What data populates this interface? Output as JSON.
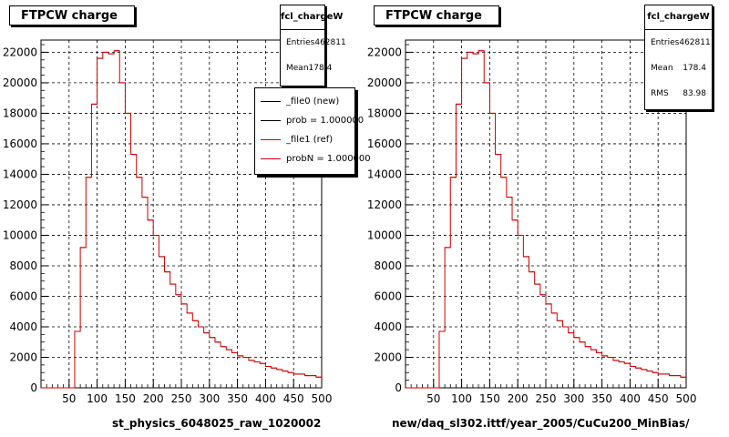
{
  "chart_data": [
    {
      "type": "line",
      "title": "FTPCW charge",
      "xlabel": "st_physics_6048025_raw_1020002",
      "ylabel": "",
      "xlim": [
        0,
        500
      ],
      "ylim": [
        0,
        22800
      ],
      "x_ticks": [
        "50",
        "100",
        "150",
        "200",
        "250",
        "300",
        "350",
        "400",
        "450",
        "500"
      ],
      "y_ticks": [
        "0",
        "2000",
        "4000",
        "6000",
        "8000",
        "10000",
        "12000",
        "14000",
        "16000",
        "18000",
        "20000",
        "22000"
      ],
      "grid": true,
      "bin_width": 10,
      "x": [
        5,
        15,
        25,
        35,
        45,
        55,
        65,
        75,
        85,
        95,
        105,
        115,
        125,
        135,
        145,
        155,
        165,
        175,
        185,
        195,
        205,
        215,
        225,
        235,
        245,
        255,
        265,
        275,
        285,
        295,
        305,
        315,
        325,
        335,
        345,
        355,
        365,
        375,
        385,
        395,
        405,
        415,
        425,
        435,
        445,
        455,
        465,
        475,
        485,
        495
      ],
      "series": [
        {
          "color": "#cc0000",
          "values": [
            0,
            0,
            0,
            0,
            0,
            0,
            3700,
            9200,
            13800,
            18600,
            21600,
            22000,
            21900,
            22100,
            20000,
            18000,
            15300,
            13800,
            12500,
            11000,
            10000,
            8600,
            7600,
            6800,
            6100,
            5500,
            4900,
            4400,
            4000,
            3600,
            3300,
            3000,
            2700,
            2500,
            2300,
            2100,
            2000,
            1800,
            1700,
            1600,
            1400,
            1300,
            1200,
            1100,
            1000,
            900,
            900,
            800,
            800,
            700
          ]
        }
      ],
      "stats": {
        "name": "fcl_chargeW",
        "rows": [
          {
            "label": "Entries",
            "value": "462811"
          },
          {
            "label": "Mean",
            "value": "178.4"
          }
        ]
      },
      "legend": {
        "placement": "top-right",
        "entries": [
          {
            "label": "_file0 (new)",
            "color": "#000000"
          },
          {
            "label": "prob = 1.000000",
            "color": "#000000"
          },
          {
            "label": "_file1 (ref)",
            "color": "#cc0000"
          },
          {
            "label": "probN = 1.000000",
            "color": "#cc0000"
          }
        ]
      }
    },
    {
      "type": "line",
      "title": "FTPCW charge",
      "xlabel": "new/daq_sl302.ittf/year_2005/CuCu200_MinBias/",
      "ylabel": "",
      "xlim": [
        0,
        500
      ],
      "ylim": [
        0,
        22800
      ],
      "x_ticks": [
        "50",
        "100",
        "150",
        "200",
        "250",
        "300",
        "350",
        "400",
        "450",
        "500"
      ],
      "y_ticks": [
        "0",
        "2000",
        "4000",
        "6000",
        "8000",
        "10000",
        "12000",
        "14000",
        "16000",
        "18000",
        "20000",
        "22000"
      ],
      "grid": true,
      "bin_width": 10,
      "x": [
        5,
        15,
        25,
        35,
        45,
        55,
        65,
        75,
        85,
        95,
        105,
        115,
        125,
        135,
        145,
        155,
        165,
        175,
        185,
        195,
        205,
        215,
        225,
        235,
        245,
        255,
        265,
        275,
        285,
        295,
        305,
        315,
        325,
        335,
        345,
        355,
        365,
        375,
        385,
        395,
        405,
        415,
        425,
        435,
        445,
        455,
        465,
        475,
        485,
        495
      ],
      "series": [
        {
          "color": "#cc0000",
          "values": [
            0,
            0,
            0,
            0,
            0,
            0,
            3700,
            9200,
            13800,
            18600,
            21600,
            22000,
            21900,
            22100,
            20000,
            18000,
            15300,
            13800,
            12500,
            11000,
            10000,
            8600,
            7600,
            6800,
            6100,
            5500,
            4900,
            4400,
            4000,
            3600,
            3300,
            3000,
            2700,
            2500,
            2300,
            2100,
            2000,
            1800,
            1700,
            1600,
            1400,
            1300,
            1200,
            1100,
            1000,
            900,
            900,
            800,
            800,
            700
          ]
        }
      ],
      "stats": {
        "name": "fcl_chargeW",
        "rows": [
          {
            "label": "Entries",
            "value": "462811"
          },
          {
            "label": "Mean",
            "value": "178.4"
          },
          {
            "label": "RMS",
            "value": "83.98"
          }
        ]
      }
    }
  ]
}
